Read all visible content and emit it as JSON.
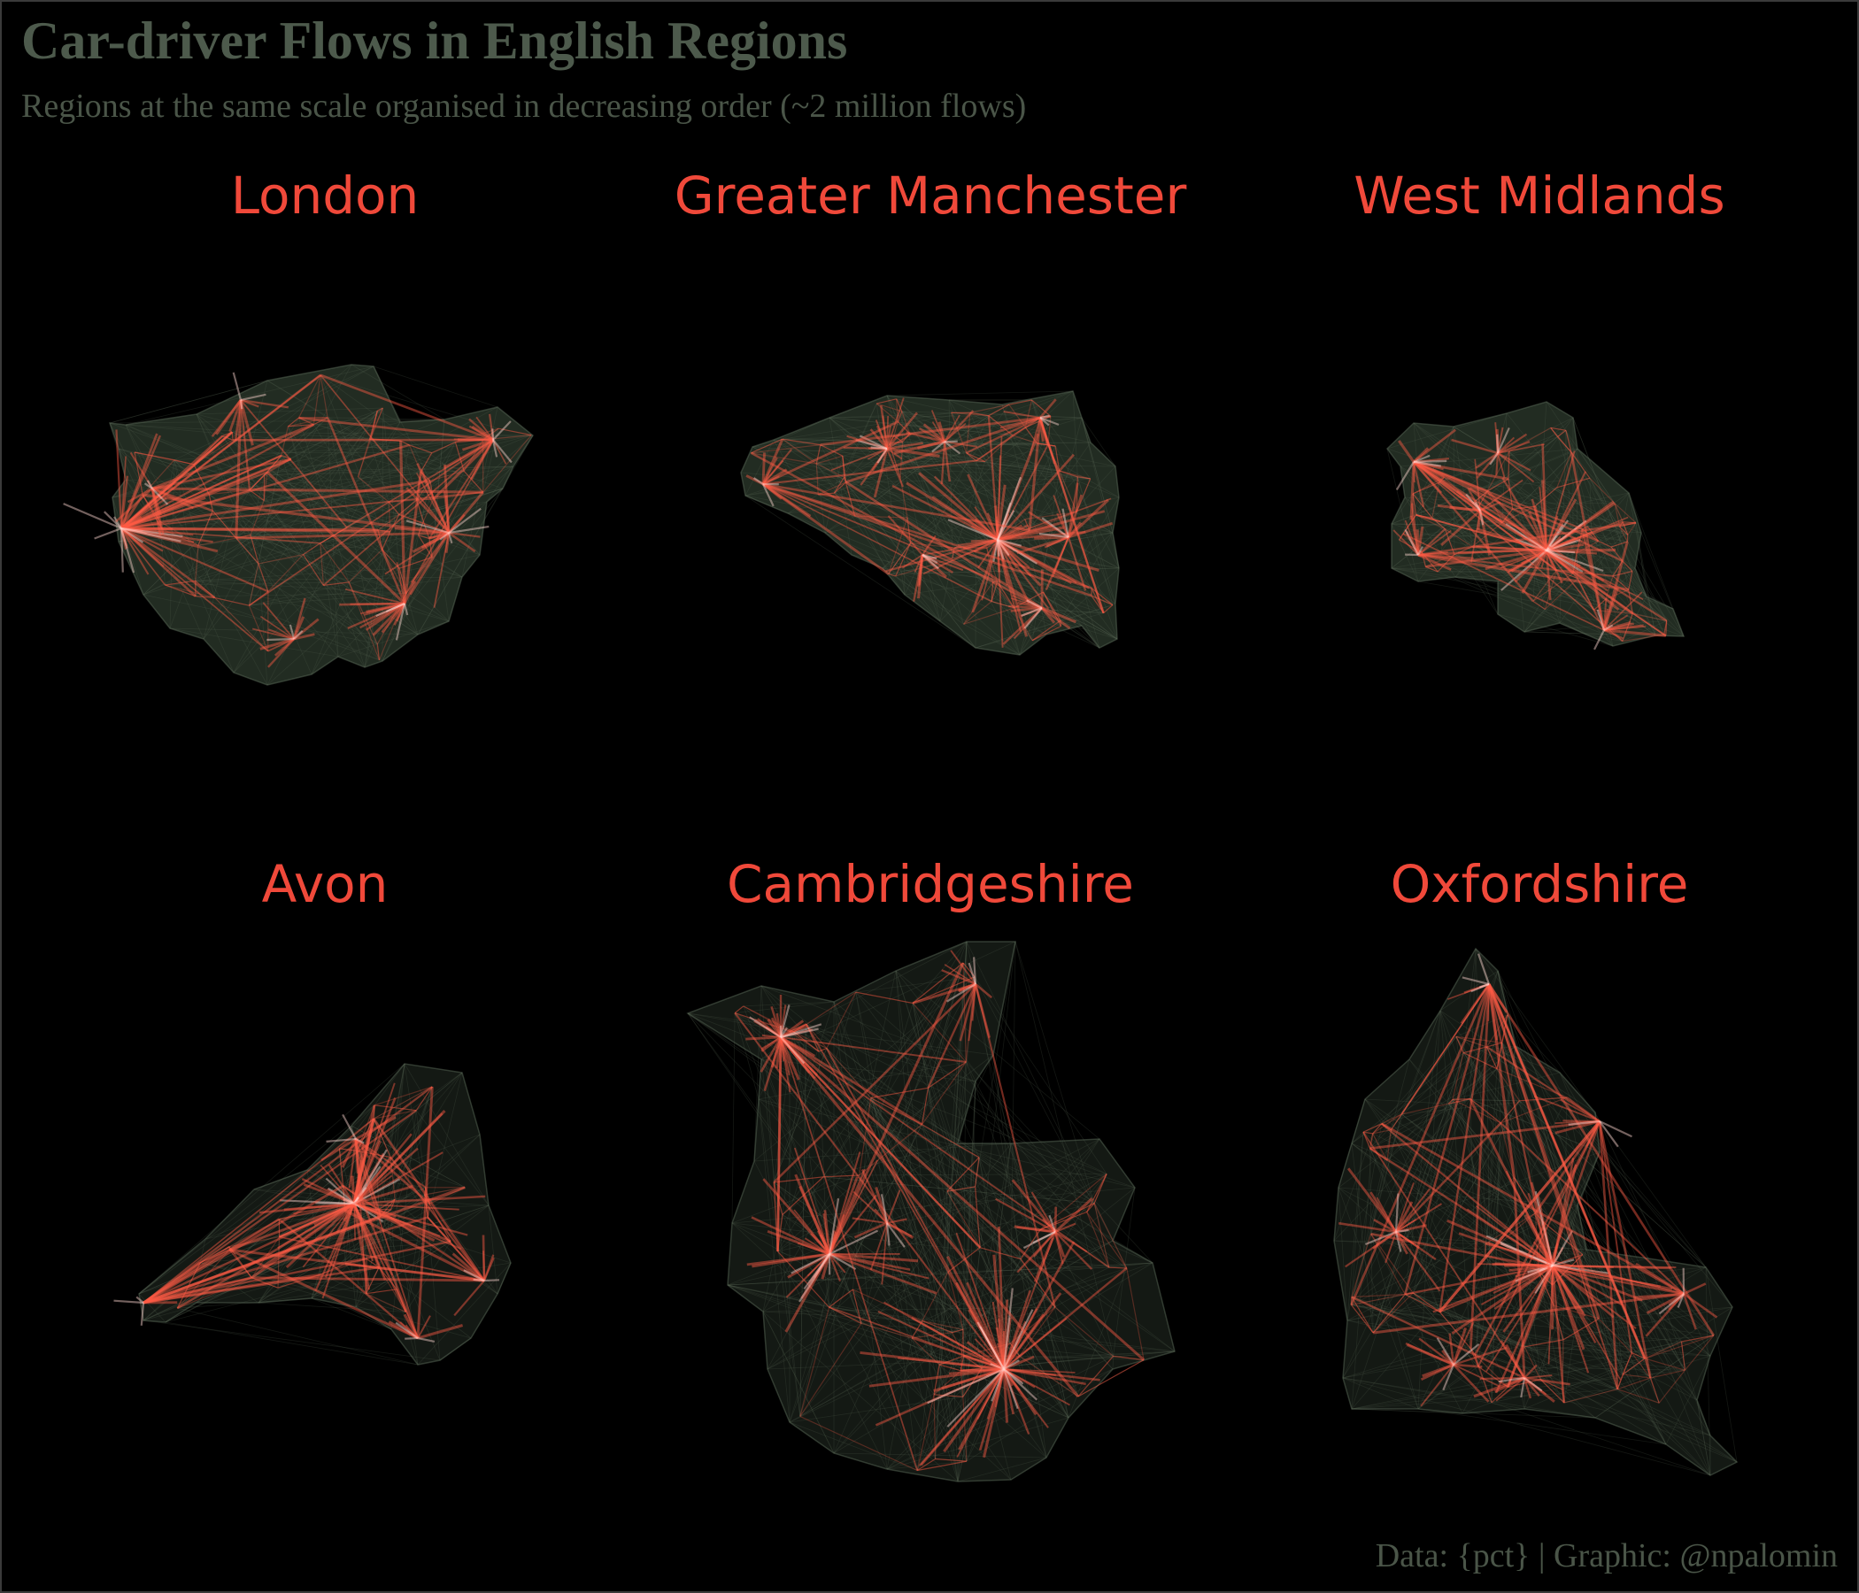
{
  "title": "Car-driver Flows in English Regions",
  "subtitle": "Regions at the same scale organised in decreasing order (~2 million flows)",
  "caption": "Data: {pct} | Graphic: @npalomin",
  "colors": {
    "background": "#000000",
    "title_text": "#4d5a4c",
    "subtitle_text": "#4a5548",
    "region_label": "#f0493a",
    "flow_line": "#ff5a45",
    "flow_highlight": "#ffd6d0",
    "flow_background": "#5a6a58"
  },
  "regions": [
    {
      "name": "London"
    },
    {
      "name": "Greater Manchester"
    },
    {
      "name": "West Midlands"
    },
    {
      "name": "Avon"
    },
    {
      "name": "Cambridgeshire"
    },
    {
      "name": "Oxfordshire"
    }
  ]
}
